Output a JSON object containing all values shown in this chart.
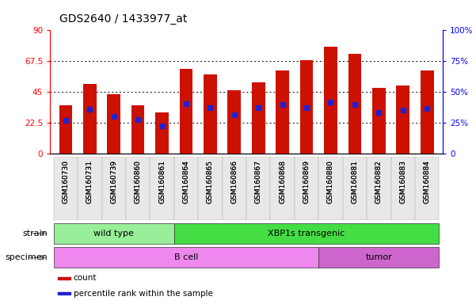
{
  "title": "GDS2640 / 1433977_at",
  "samples": [
    "GSM160730",
    "GSM160731",
    "GSM160739",
    "GSM160860",
    "GSM160861",
    "GSM160864",
    "GSM160865",
    "GSM160866",
    "GSM160867",
    "GSM160868",
    "GSM160869",
    "GSM160880",
    "GSM160881",
    "GSM160882",
    "GSM160883",
    "GSM160884"
  ],
  "count_values": [
    35.5,
    51.0,
    43.5,
    35.5,
    30.0,
    62.0,
    58.0,
    46.5,
    52.0,
    60.5,
    68.0,
    78.0,
    73.0,
    48.0,
    49.5,
    61.0
  ],
  "percentile_values": [
    27.0,
    36.0,
    30.0,
    27.5,
    22.5,
    40.5,
    37.5,
    31.5,
    37.0,
    39.5,
    37.5,
    42.0,
    39.5,
    33.5,
    35.0,
    36.5
  ],
  "ylim_left": [
    0,
    90
  ],
  "ylim_right": [
    0,
    100
  ],
  "yticks_left": [
    0,
    22.5,
    45.0,
    67.5,
    90
  ],
  "ytick_labels_left": [
    "0",
    "22.5",
    "45",
    "67.5",
    "90"
  ],
  "yticks_right": [
    0,
    25,
    50,
    75,
    100
  ],
  "ytick_labels_right": [
    "0",
    "25%",
    "50%",
    "75%",
    "100%"
  ],
  "strain_groups": [
    {
      "label": "wild type",
      "start": 0,
      "end": 4,
      "color": "#99ee99"
    },
    {
      "label": "XBP1s transgenic",
      "start": 5,
      "end": 15,
      "color": "#44dd44"
    }
  ],
  "specimen_groups": [
    {
      "label": "B cell",
      "start": 0,
      "end": 10,
      "color": "#ee88ee"
    },
    {
      "label": "tumor",
      "start": 11,
      "end": 15,
      "color": "#cc66cc"
    }
  ],
  "bar_color": "#cc1100",
  "blue_color": "#2222cc",
  "bar_width": 0.55,
  "bg_color": "#ffffff",
  "legend_items": [
    {
      "label": "count",
      "color": "#cc1100"
    },
    {
      "label": "percentile rank within the sample",
      "color": "#2222cc"
    }
  ],
  "grid_dotted_vals": [
    22.5,
    45.0,
    67.5
  ]
}
